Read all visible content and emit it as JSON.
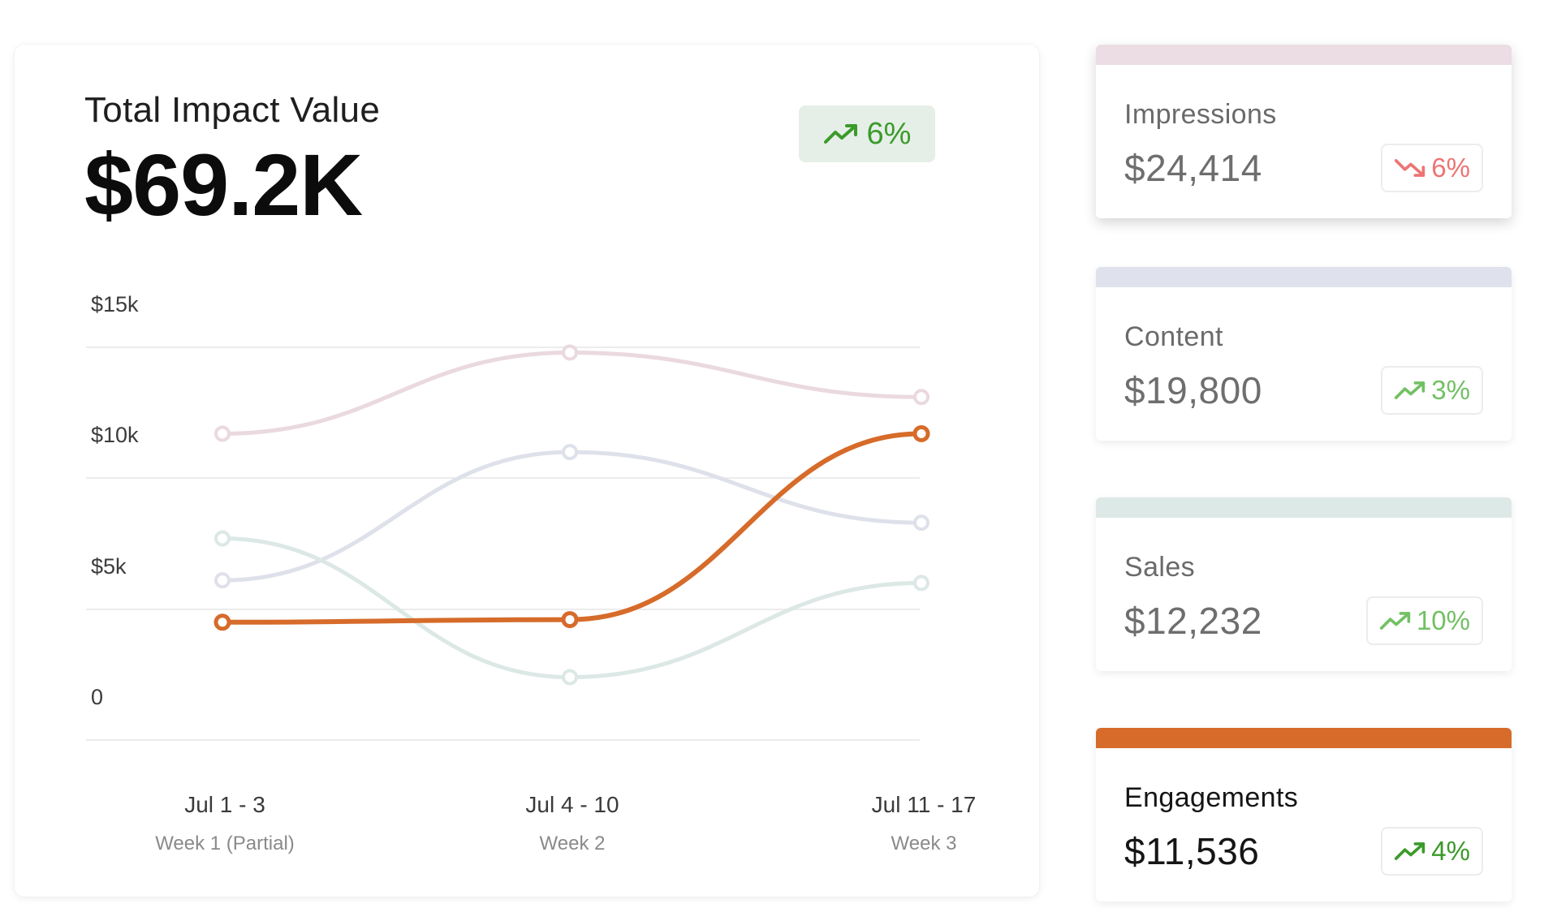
{
  "header": {
    "title": "Total Impact Value",
    "total": "$69.2K",
    "trend": "6%",
    "trend_direction": "up",
    "trend_color": "#3b9a2a",
    "trend_icon": "trend-up-icon"
  },
  "chart_data": {
    "type": "line",
    "categories": [
      "Jul 1 - 3",
      "Jul 4 - 10",
      "Jul 11 - 17"
    ],
    "category_sublabels": [
      "Week 1 (Partial)",
      "Week 2",
      "Week 3"
    ],
    "y_ticks": [
      "$15k",
      "$10k",
      "$5k",
      "0"
    ],
    "ylim": [
      0,
      15000
    ],
    "grid": true,
    "series": [
      {
        "name": "Impressions",
        "values": [
          11700,
          14800,
          13100
        ],
        "color": "#ead9df",
        "active": false
      },
      {
        "name": "Content",
        "values": [
          6100,
          11000,
          8300
        ],
        "color": "#dee1ea",
        "active": false
      },
      {
        "name": "Sales",
        "values": [
          7700,
          2400,
          6000
        ],
        "color": "#dce8e6",
        "active": false
      },
      {
        "name": "Engagements",
        "values": [
          4500,
          4600,
          11700
        ],
        "color": "#d66b2a",
        "active": true
      }
    ]
  },
  "metrics": [
    {
      "label": "Impressions",
      "value": "$24,414",
      "trend": "6%",
      "direction": "down",
      "stripe_color": "#ecdce3",
      "trend_color": "#ec7474",
      "icon": "trend-down-icon"
    },
    {
      "label": "Content",
      "value": "$19,800",
      "trend": "3%",
      "direction": "up",
      "stripe_color": "#dfe2ec",
      "trend_color": "#72c064",
      "icon": "trend-up-icon"
    },
    {
      "label": "Sales",
      "value": "$12,232",
      "trend": "10%",
      "direction": "up",
      "stripe_color": "#dde9e6",
      "trend_color": "#72c064",
      "icon": "trend-up-icon"
    },
    {
      "label": "Engagements",
      "value": "$11,536",
      "trend": "4%",
      "direction": "up",
      "stripe_color": "#d66b2a",
      "trend_color": "#3b9a2a",
      "icon": "trend-up-icon",
      "active": true
    }
  ]
}
